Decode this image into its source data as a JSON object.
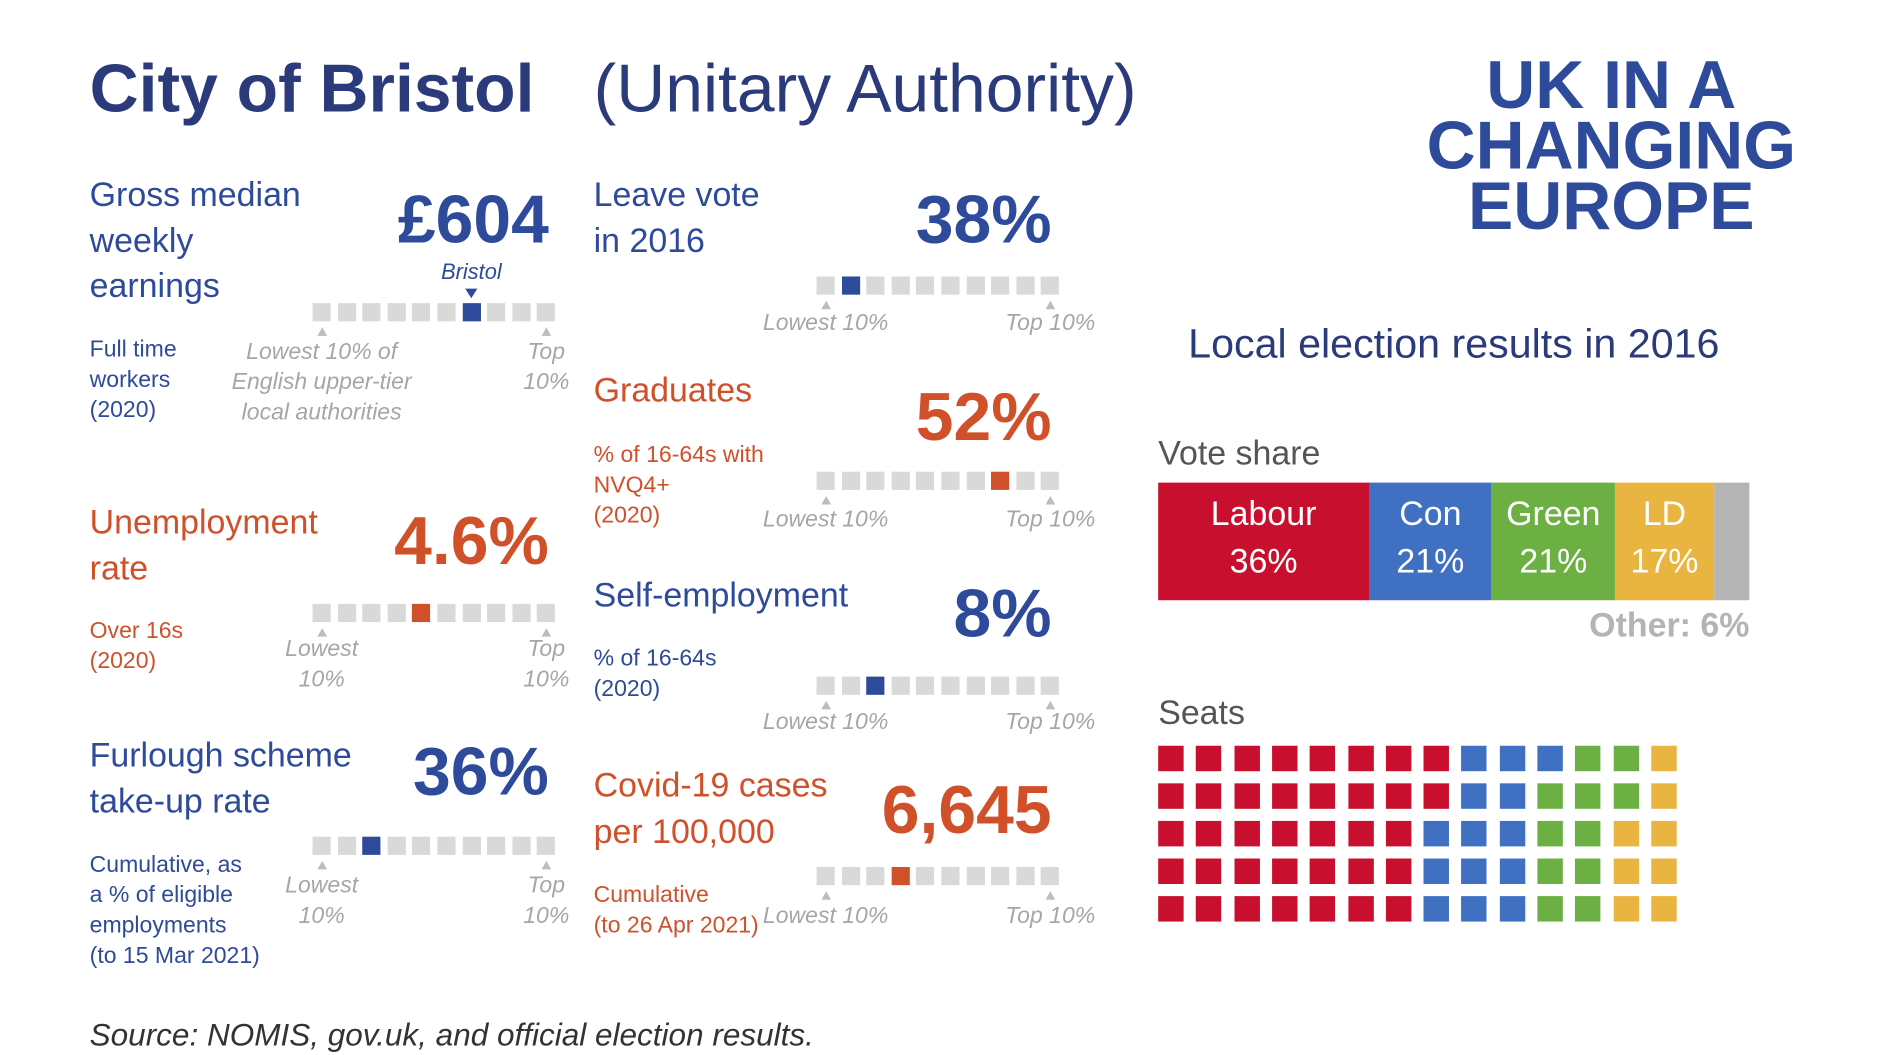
{
  "header": {
    "title": "City of Bristol",
    "subtitle": "(Unitary Authority)"
  },
  "logo": [
    "UK IN A",
    "CHANGING",
    "EUROPE"
  ],
  "indicators": [
    {
      "title": [
        "Gross median",
        "weekly",
        "earnings"
      ],
      "value": "£604",
      "color": "#2e4a9a",
      "description": [
        "Full time",
        "workers",
        "(2020)"
      ],
      "decile": 7,
      "marker": "Bristol",
      "low": [
        "Lowest 10% of",
        "English upper-tier",
        "local authorities"
      ],
      "top": [
        "Top",
        "10%"
      ]
    },
    {
      "title": [
        "Unemployment",
        "rate"
      ],
      "value": "4.6%",
      "color": "#d0502a",
      "description": [
        "Over 16s",
        "(2020)"
      ],
      "decile": 5,
      "low": [
        "Lowest",
        "10%"
      ],
      "top": [
        "Top",
        "10%"
      ]
    },
    {
      "title": [
        "Furlough scheme",
        "take-up rate"
      ],
      "value": "36%",
      "color": "#2e4a9a",
      "description": [
        "Cumulative, as",
        "a % of eligible",
        "employments",
        "(to 15 Mar 2021)"
      ],
      "decile": 3,
      "low": [
        "Lowest",
        "10%"
      ],
      "top": [
        "Top",
        "10%"
      ]
    },
    {
      "title": [
        "Leave vote",
        "in 2016"
      ],
      "value": "38%",
      "color": "#2e4a9a",
      "description": [],
      "decile": 2,
      "low": [
        "Lowest 10%"
      ],
      "top": [
        "Top 10%"
      ]
    },
    {
      "title": [
        "Graduates"
      ],
      "value": "52%",
      "color": "#d0502a",
      "description": [
        "% of 16-64s with",
        "NVQ4+",
        "(2020)"
      ],
      "decile": 8,
      "low": [
        "Lowest 10%"
      ],
      "top": [
        "Top 10%"
      ]
    },
    {
      "title": [
        "Self-employment"
      ],
      "value": "8%",
      "color": "#2e4a9a",
      "description": [
        "% of 16-64s",
        "(2020)"
      ],
      "decile": 3,
      "low": [
        "Lowest 10%"
      ],
      "top": [
        "Top 10%"
      ]
    },
    {
      "title": [
        "Covid-19 cases",
        "per 100,000"
      ],
      "value": "6,645",
      "color": "#d0502a",
      "description": [
        "Cumulative",
        "(to 26 Apr 2021)"
      ],
      "decile": 4,
      "low": [
        "Lowest 10%"
      ],
      "top": [
        "Top 10%"
      ]
    }
  ],
  "election": {
    "title": "Local election results in 2016",
    "vote_share": {
      "label": "Vote share",
      "segments": [
        {
          "name": "Labour",
          "value": 36,
          "value_label": "36%",
          "color": "#c8102e"
        },
        {
          "name": "Con",
          "value": 21,
          "value_label": "21%",
          "color": "#3f70c2"
        },
        {
          "name": "Green",
          "value": 21,
          "value_label": "21%",
          "color": "#6cb044"
        },
        {
          "name": "LD",
          "value": 17,
          "value_label": "17%",
          "color": "#e9b440"
        },
        {
          "value": 6,
          "value_label": "Other: 6%",
          "color": "#b4b4b4"
        }
      ]
    },
    "seats": {
      "label": "Seats",
      "rows": 5,
      "parties": [
        {
          "count": 37,
          "color": "#c8102e"
        },
        {
          "count": 14,
          "color": "#3f70c2"
        },
        {
          "count": 11,
          "color": "#6cb044"
        },
        {
          "count": 8,
          "color": "#e9b440"
        }
      ]
    }
  },
  "source": "Source: NOMIS, gov.uk, and official election results."
}
